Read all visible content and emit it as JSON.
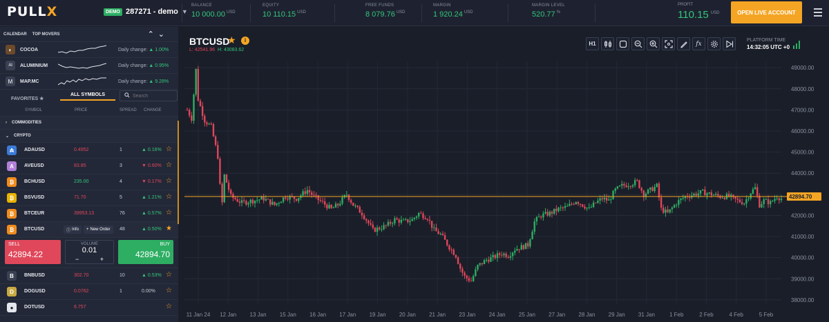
{
  "topbar": {
    "logo_main": "PULL",
    "logo_x": "X",
    "account_badge": "DEMO",
    "account_id": "287271 - demo",
    "stats": [
      {
        "label": "BALANCE",
        "value": "10 000.00",
        "unit": "USD"
      },
      {
        "label": "EQUITY",
        "value": "10 110.15",
        "unit": "USD"
      },
      {
        "label": "FREE FUNDS",
        "value": "8 079.76",
        "unit": "USD"
      },
      {
        "label": "MARGIN",
        "value": "1 920.24",
        "unit": "USD"
      },
      {
        "label": "MARGIN LEVEL",
        "value": "520.77",
        "unit": "%"
      }
    ],
    "profit_label": "PROFIT",
    "profit_value": "110.15",
    "profit_unit": "USD",
    "open_live_label": "OPEN LIVE ACCOUNT"
  },
  "left": {
    "tab_calendar": "CALENDAR",
    "tab_top_movers": "TOP MOVERS",
    "movers": [
      {
        "name": "COCOA",
        "daily_label": "Daily change:",
        "change": "1.00%",
        "icon_color": "#6b4a2a",
        "icon": "cocoa-icon",
        "glyph": "◐"
      },
      {
        "name": "ALUMINIUM",
        "daily_label": "Daily change:",
        "change": "0.95%",
        "icon_color": "#3a4152",
        "icon": "aluminium-icon",
        "glyph": "Al"
      },
      {
        "name": "MAP.MC",
        "daily_label": "Daily change:",
        "change": "9.28%",
        "icon_color": "#3a4152",
        "icon": "mapfre-icon",
        "glyph": "M"
      }
    ],
    "tab_favorites": "FAVORITES",
    "tab_all_symbols": "ALL SYMBOLS",
    "search_placeholder": "Search",
    "col_symbol": "SYMBOL",
    "col_price": "PRICE",
    "col_spread": "SPREAD",
    "col_change": "CHANGE",
    "group_commodities": "COMMODITIES",
    "group_crypto": "CRYPTO",
    "rows": [
      {
        "symbol": "ADAUSD",
        "price": "0.4952",
        "price_dir": "dn",
        "spread": "1",
        "change": "0.16%",
        "change_dir": "up",
        "icon_color": "#3b7bd8",
        "glyph": "₳"
      },
      {
        "symbol": "AVEUSD",
        "price": "83.85",
        "price_dir": "dn",
        "spread": "3",
        "change": "0.60%",
        "change_dir": "dn",
        "icon_color": "#b180d8",
        "glyph": "A"
      },
      {
        "symbol": "BCHUSD",
        "price": "235.00",
        "price_dir": "up",
        "spread": "4",
        "change": "0.17%",
        "change_dir": "dn",
        "icon_color": "#f08c1d",
        "glyph": "₿"
      },
      {
        "symbol": "BSVUSD",
        "price": "71.70",
        "price_dir": "dn",
        "spread": "5",
        "change": "1.21%",
        "change_dir": "up",
        "icon_color": "#eab300",
        "glyph": "₿"
      },
      {
        "symbol": "BTCEUR",
        "price": "39953.13",
        "price_dir": "dn",
        "spread": "76",
        "change": "0.57%",
        "change_dir": "up",
        "icon_color": "#f08c1d",
        "glyph": "₿"
      },
      {
        "symbol": "BTCUSD",
        "price": "",
        "price_dir": "up",
        "spread": "48",
        "change": "0.50%",
        "change_dir": "up",
        "icon_color": "#f08c1d",
        "glyph": "₿",
        "star_filled": true
      }
    ],
    "rows_after": [
      {
        "symbol": "BNBUSD",
        "price": "302.70",
        "price_dir": "dn",
        "spread": "10",
        "change": "0.53%",
        "change_dir": "up",
        "icon_color": "#3a4152",
        "glyph": "B"
      },
      {
        "symbol": "DOGUSD",
        "price": "0.0762",
        "price_dir": "dn",
        "spread": "1",
        "change": "0.00%",
        "change_dir": "neu",
        "icon_color": "#c9a941",
        "glyph": "D"
      },
      {
        "symbol": "DOTUSD",
        "price": "6.757",
        "price_dir": "dn",
        "spread": "",
        "change": "",
        "change_dir": "up",
        "icon_color": "#e3e6ec",
        "glyph": "●"
      }
    ],
    "info_label": "Info",
    "new_order_label": "New Order",
    "sell_label": "SELL",
    "sell_price": "42894.22",
    "volume_label": "VOLUME",
    "volume_value": "0.01",
    "buy_label": "BUY",
    "buy_price": "42894.70"
  },
  "chart_header": {
    "symbol": "BTCUSD",
    "low_label": "L:",
    "low_value": "42541.96",
    "high_label": "H:",
    "high_value": "43083.62",
    "timeframe": "H1",
    "platform_time_label": "PLATFORM TIME",
    "platform_time_value": "14:32:05 UTC +0"
  },
  "chart_data": {
    "type": "candlestick",
    "x_ticks": [
      "11 Jan 24",
      "12 Jan",
      "13 Jan",
      "15 Jan",
      "16 Jan",
      "17 Jan",
      "19 Jan",
      "20 Jan",
      "21 Jan",
      "23 Jan",
      "24 Jan",
      "25 Jan",
      "27 Jan",
      "28 Jan",
      "29 Jan",
      "31 Jan",
      "1 Feb",
      "2 Feb",
      "4 Feb",
      "5 Feb"
    ],
    "y_ticks": [
      "49000.00",
      "48000.00",
      "47000.00",
      "46000.00",
      "45000.00",
      "44000.00",
      "43000.00",
      "42000.00",
      "41000.00",
      "40000.00",
      "39000.00",
      "38000.00"
    ],
    "ylim": [
      37800,
      49300
    ],
    "current_price": "42894.70",
    "current_price_value": 42894.7,
    "trend_points": [
      [
        0,
        47000
      ],
      [
        2,
        46600
      ],
      [
        4,
        48900
      ],
      [
        5,
        47500
      ],
      [
        8,
        46500
      ],
      [
        11,
        46200
      ],
      [
        14,
        44800
      ],
      [
        15,
        43400
      ],
      [
        16,
        42600
      ],
      [
        17,
        43900
      ],
      [
        20,
        42900
      ],
      [
        25,
        42600
      ],
      [
        30,
        42700
      ],
      [
        35,
        42800
      ],
      [
        40,
        42500
      ],
      [
        45,
        42900
      ],
      [
        50,
        42800
      ],
      [
        55,
        43200
      ],
      [
        58,
        42900
      ],
      [
        62,
        42600
      ],
      [
        66,
        42300
      ],
      [
        69,
        42500
      ],
      [
        73,
        43000
      ],
      [
        76,
        42500
      ],
      [
        80,
        42100
      ],
      [
        82,
        41800
      ],
      [
        85,
        41300
      ],
      [
        88,
        41400
      ],
      [
        91,
        41500
      ],
      [
        95,
        41800
      ],
      [
        99,
        41700
      ],
      [
        103,
        41800
      ],
      [
        106,
        42100
      ],
      [
        110,
        41900
      ],
      [
        113,
        41300
      ],
      [
        116,
        41100
      ],
      [
        120,
        40500
      ],
      [
        123,
        40100
      ],
      [
        125,
        39500
      ],
      [
        127,
        39100
      ],
      [
        130,
        38900
      ],
      [
        133,
        39600
      ],
      [
        137,
        39900
      ],
      [
        140,
        40000
      ],
      [
        144,
        40200
      ],
      [
        147,
        40100
      ],
      [
        150,
        40400
      ],
      [
        153,
        40500
      ],
      [
        156,
        40600
      ],
      [
        159,
        41700
      ],
      [
        162,
        42000
      ],
      [
        166,
        42100
      ],
      [
        170,
        42300
      ],
      [
        174,
        42400
      ],
      [
        178,
        42700
      ],
      [
        181,
        42500
      ],
      [
        184,
        42300
      ],
      [
        187,
        42600
      ],
      [
        190,
        42800
      ],
      [
        193,
        42700
      ],
      [
        196,
        43200
      ],
      [
        199,
        43400
      ],
      [
        203,
        43500
      ],
      [
        206,
        43600
      ],
      [
        209,
        43000
      ],
      [
        212,
        43200
      ],
      [
        215,
        43400
      ],
      [
        217,
        42300
      ],
      [
        220,
        42100
      ],
      [
        224,
        42600
      ],
      [
        228,
        42900
      ],
      [
        232,
        43000
      ],
      [
        236,
        43100
      ],
      [
        240,
        43000
      ],
      [
        244,
        42900
      ],
      [
        248,
        42900
      ],
      [
        252,
        42700
      ],
      [
        255,
        42600
      ],
      [
        258,
        43100
      ],
      [
        260,
        43300
      ],
      [
        262,
        42500
      ],
      [
        264,
        42700
      ],
      [
        267,
        42600
      ],
      [
        270,
        42900
      ],
      [
        272,
        42800
      ]
    ],
    "colors": {
      "up": "#2eae63",
      "down": "#e0475a",
      "price_line": "#f5a524"
    }
  }
}
